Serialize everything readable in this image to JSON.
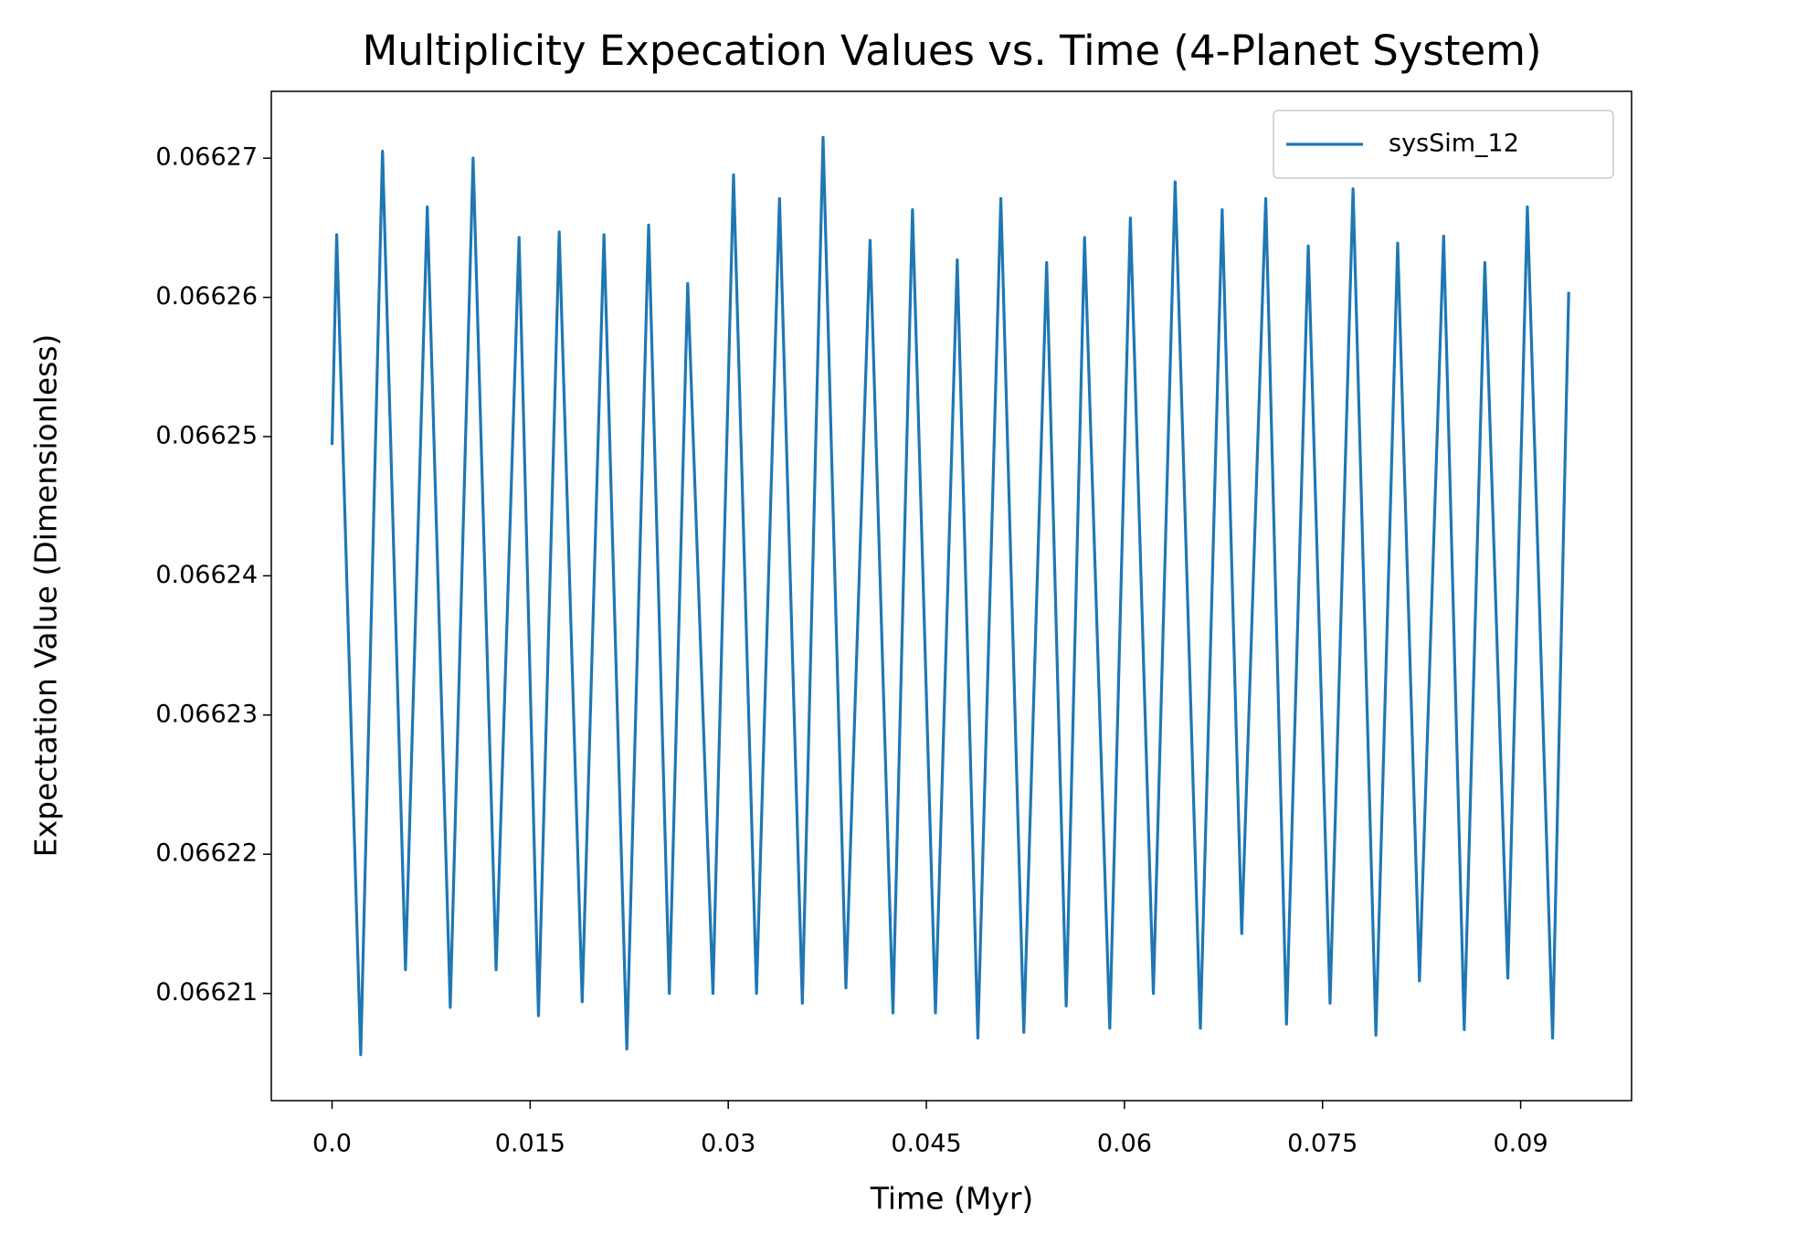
{
  "chart_data": {
    "type": "line",
    "title": "Multiplicity Expecation Values vs. Time (4-Planet System)",
    "x_label": "Time (Myr)",
    "y_label": "Expectation Value (Dimensionless)",
    "x": [
      0,
      0.00035,
      0.00217,
      0.00382,
      0.00556,
      0.00721,
      0.00895,
      0.01068,
      0.01242,
      0.01416,
      0.01563,
      0.0172,
      0.01894,
      0.02059,
      0.02232,
      0.02397,
      0.02554,
      0.02693,
      0.02884,
      0.0304,
      0.03214,
      0.03388,
      0.03561,
      0.03718,
      0.03891,
      0.04074,
      0.04247,
      0.04395,
      0.04569,
      0.04734,
      0.0489,
      0.05064,
      0.05238,
      0.05411,
      0.05559,
      0.05698,
      0.05889,
      0.06045,
      0.06219,
      0.06384,
      0.06575,
      0.0674,
      0.06888,
      0.0707,
      0.07227,
      0.07392,
      0.07557,
      0.07731,
      0.07904,
      0.08069,
      0.08234,
      0.08417,
      0.08573,
      0.08729,
      0.08903,
      0.09051,
      0.09242,
      0.09364
    ],
    "series": [
      {
        "name": "sysSim_12",
        "color": "#1f77b4",
        "values": [
          0.0662494,
          0.0662645,
          0.0662056,
          0.0662705,
          0.0662117,
          0.0662665,
          0.066209,
          0.06627,
          0.0662117,
          0.0662643,
          0.0662084,
          0.0662647,
          0.0662094,
          0.0662645,
          0.066206,
          0.0662652,
          0.06621,
          0.066261,
          0.06621,
          0.0662688,
          0.06621,
          0.0662671,
          0.0662093,
          0.0662715,
          0.0662104,
          0.0662641,
          0.0662086,
          0.0662663,
          0.0662086,
          0.0662627,
          0.0662068,
          0.0662671,
          0.0662072,
          0.0662625,
          0.0662091,
          0.0662643,
          0.0662075,
          0.0662657,
          0.06621,
          0.0662683,
          0.0662075,
          0.0662663,
          0.0662143,
          0.0662671,
          0.0662078,
          0.0662637,
          0.0662093,
          0.0662678,
          0.066207,
          0.0662639,
          0.0662109,
          0.0662644,
          0.0662074,
          0.0662625,
          0.0662111,
          0.0662665,
          0.0662068,
          0.0662604
        ]
      }
    ],
    "xlim": [
      -0.0046,
      0.0984
    ],
    "ylim": [
      0.0662023,
      0.0662748
    ],
    "xticks": [
      {
        "value": 0,
        "label": "0.0"
      },
      0.015,
      0.03,
      0.045,
      0.06,
      0.075,
      0.09
    ],
    "yticks": [
      0.06621,
      0.06622,
      0.06623,
      0.06624,
      0.06625,
      0.06626,
      0.06627
    ],
    "legend": "upper right",
    "grid": false
  }
}
